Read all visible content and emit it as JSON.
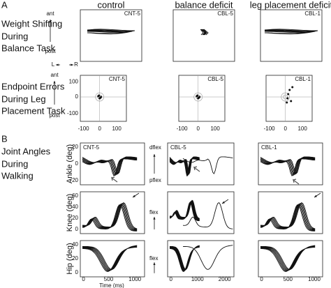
{
  "panel_a": {
    "label": "A",
    "columns": [
      "control",
      "balance deficit",
      "leg placement deficit"
    ],
    "row1": {
      "title": [
        "Weight Shifting",
        "During",
        "Balance Task"
      ],
      "ant": "ant",
      "post": "post",
      "left": "L",
      "right": "R",
      "subjects": [
        "CNT-5",
        "CBL-5",
        "CBL-1"
      ]
    },
    "row2": {
      "title": [
        "Endpoint Errors",
        "During Leg",
        "Placement Task"
      ],
      "ant": "ant",
      "post": "post",
      "yticks": [
        "100",
        "0",
        "-100"
      ],
      "xticks": [
        "-100",
        "0",
        "100"
      ],
      "subjects": [
        "CNT-5",
        "CBL-5",
        "CBL-1"
      ]
    }
  },
  "panel_b": {
    "label": "B",
    "title": [
      "Joint Angles",
      "During",
      "Walking"
    ],
    "rows": [
      {
        "ylabel": "Ankle (deg)",
        "yticks": [
          "20",
          "0",
          "-20"
        ],
        "up": "dflex",
        "down": "pflex"
      },
      {
        "ylabel": "Knee (deg)",
        "yticks": [
          "60",
          "40",
          "20",
          "0"
        ],
        "up": "flex"
      },
      {
        "ylabel": "Hip (deg)",
        "yticks": [
          "40",
          "20",
          "0"
        ],
        "up": "flex"
      }
    ],
    "subjects": [
      "CNT-5",
      "CBL-5",
      "CBL-1"
    ],
    "xticks": [
      [
        "0",
        "500",
        "1000"
      ],
      [
        "0",
        "1000",
        "2000"
      ],
      [
        "0",
        "500",
        "1000"
      ]
    ],
    "xlabel": "Time (ms)"
  }
}
